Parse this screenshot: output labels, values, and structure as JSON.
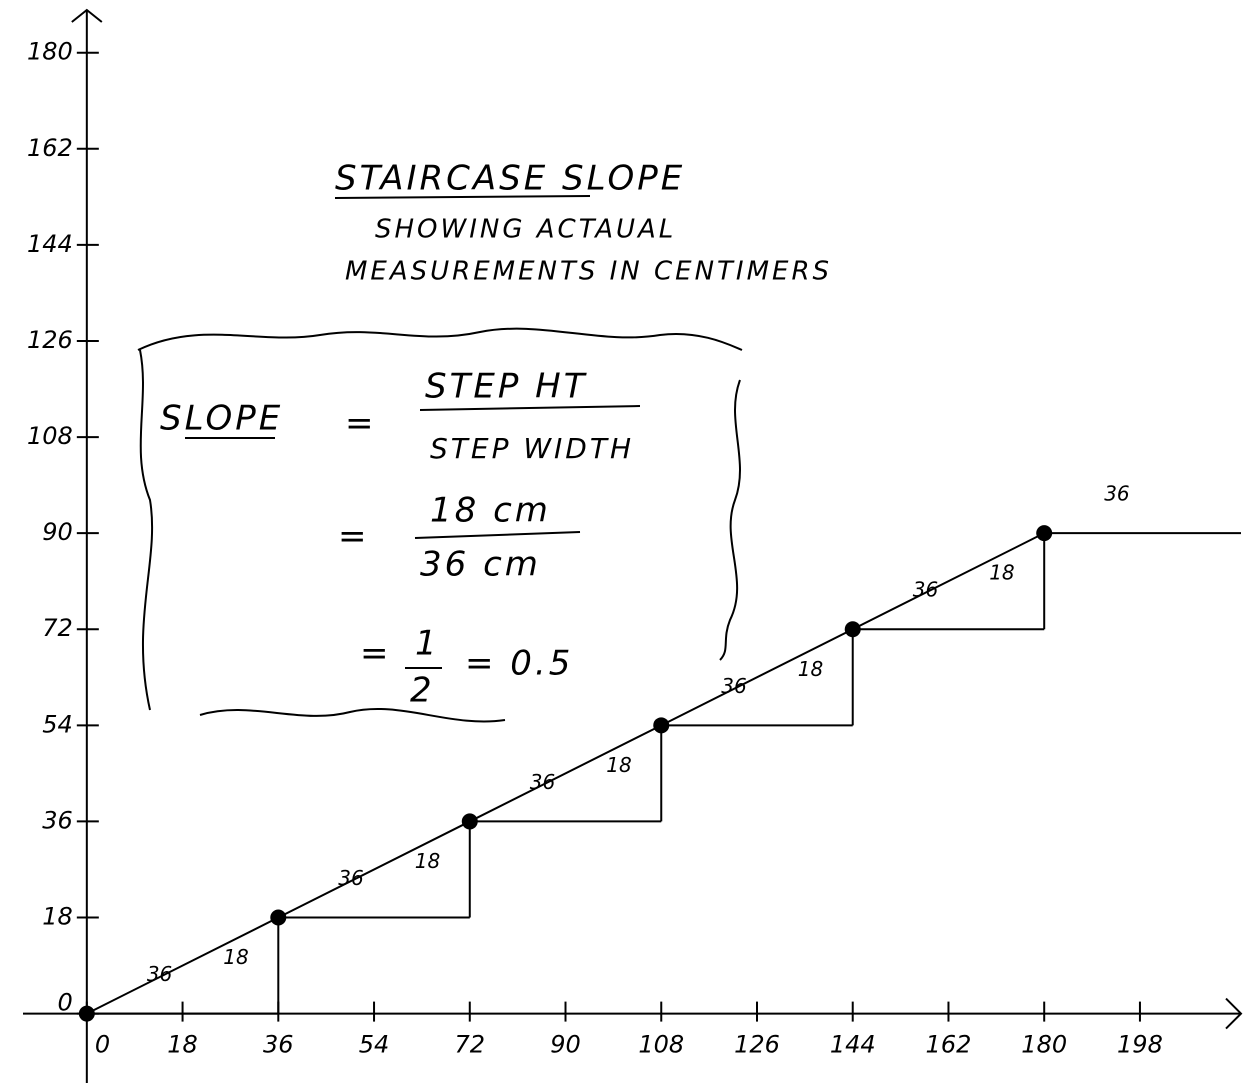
{
  "chart_data": {
    "type": "line",
    "title": "STAIRCASE SLOPE",
    "subtitle": [
      "SHOWING ACTAUAL",
      "MEASUREMENTS IN CENTIMERS"
    ],
    "x": [
      0,
      36,
      72,
      108,
      144,
      180
    ],
    "series": [
      {
        "values": [
          0,
          18,
          36,
          54,
          72,
          90
        ],
        "color": "#000000"
      }
    ],
    "xlim": [
      -12,
      217
    ],
    "ylim": [
      -13,
      188
    ],
    "xticks": [
      0,
      18,
      36,
      54,
      72,
      90,
      108,
      126,
      144,
      162,
      180,
      198
    ],
    "yticks": [
      0,
      18,
      36,
      54,
      72,
      90,
      108,
      126,
      144,
      162,
      180
    ],
    "step_run_labels": [
      36,
      36,
      36,
      36,
      36,
      36
    ],
    "step_rise_labels": [
      18,
      18,
      18,
      18,
      18
    ],
    "annotation": {
      "slope": "SLOPE",
      "equals": "=",
      "numerator": "STEP HT",
      "denominator": "STEP WIDTH",
      "num_value": "18 cm",
      "den_value": "36 cm",
      "fraction_top": "1",
      "fraction_bottom": "2",
      "result": "= 0.5"
    }
  }
}
